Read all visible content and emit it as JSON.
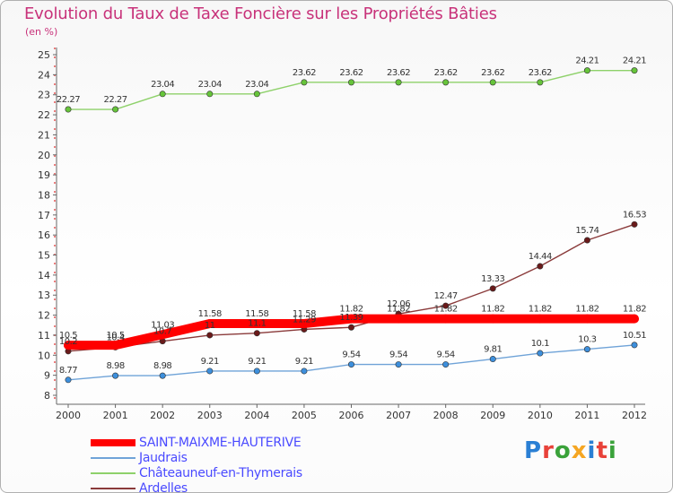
{
  "title": "Evolution du Taux de Taxe Foncière sur les Propriétés Bâties",
  "subtitle": "(en %)",
  "logo": {
    "text": "Proxiti",
    "letter_colors": [
      "#2a7fd4",
      "#e8423a",
      "#3aa23a",
      "#f5a623",
      "#2a7fd4",
      "#e8423a",
      "#3aa23a"
    ]
  },
  "colors": {
    "title": "#c8327a",
    "legend_text": "#4a4aff",
    "axis": "#666666",
    "grid_dash": "#dd0000"
  },
  "chart_data": {
    "type": "line",
    "x": [
      "2000",
      "2001",
      "2002",
      "2003",
      "2004",
      "2005",
      "2006",
      "2007",
      "2008",
      "2009",
      "2010",
      "2011",
      "2012"
    ],
    "ylim": [
      8,
      25
    ],
    "yticks": [
      "8",
      "9",
      "10",
      "11",
      "12",
      "13",
      "14",
      "15",
      "16",
      "17",
      "18",
      "19",
      "20",
      "21",
      "22",
      "23",
      "24",
      "25"
    ],
    "grid": false,
    "legend_position": "bottom-left",
    "series": [
      {
        "name": "SAINT-MAIXME-HAUTERIVE",
        "color": "#ff0000",
        "marker_color": "#ff0000",
        "thick": true,
        "values": [
          10.5,
          10.5,
          11.03,
          11.58,
          11.58,
          11.58,
          11.82,
          11.82,
          11.82,
          11.82,
          11.82,
          11.82,
          11.82
        ],
        "labels": [
          "10.5",
          "10.5",
          "11.03",
          "11.58",
          "11.58",
          "11.58",
          "11.82",
          "11.82",
          "11.82",
          "11.82",
          "11.82",
          "11.82",
          "11.82"
        ]
      },
      {
        "name": "Jaudrais",
        "color": "#6fa3d8",
        "marker_color": "#3d8fdc",
        "thick": false,
        "values": [
          8.77,
          8.98,
          8.98,
          9.21,
          9.21,
          9.21,
          9.54,
          9.54,
          9.54,
          9.81,
          10.1,
          10.3,
          10.51
        ],
        "labels": [
          "8.77",
          "8.98",
          "8.98",
          "9.21",
          "9.21",
          "9.21",
          "9.54",
          "9.54",
          "9.54",
          "9.81",
          "10.1",
          "10.3",
          "10.51"
        ]
      },
      {
        "name": "Châteauneuf-en-Thymerais",
        "color": "#8ed16a",
        "marker_color": "#66c43a",
        "thick": false,
        "values": [
          22.27,
          22.27,
          23.04,
          23.04,
          23.04,
          23.62,
          23.62,
          23.62,
          23.62,
          23.62,
          23.62,
          24.21,
          24.21
        ],
        "labels": [
          "22.27",
          "22.27",
          "23.04",
          "23.04",
          "23.04",
          "23.62",
          "23.62",
          "23.62",
          "23.62",
          "23.62",
          "23.62",
          "24.21",
          "24.21"
        ]
      },
      {
        "name": "Ardelles",
        "color": "#8a3a3a",
        "marker_color": "#6a1a1a",
        "thick": false,
        "values": [
          10.2,
          10.4,
          10.7,
          11,
          11.1,
          11.29,
          11.39,
          12.06,
          12.47,
          13.33,
          14.44,
          15.74,
          16.53
        ],
        "labels": [
          "10.2",
          "10.4",
          "10.7",
          "11",
          "11.1",
          "11.29",
          "11.39",
          "12.06",
          "12.47",
          "13.33",
          "14.44",
          "15.74",
          "16.53"
        ]
      }
    ]
  }
}
